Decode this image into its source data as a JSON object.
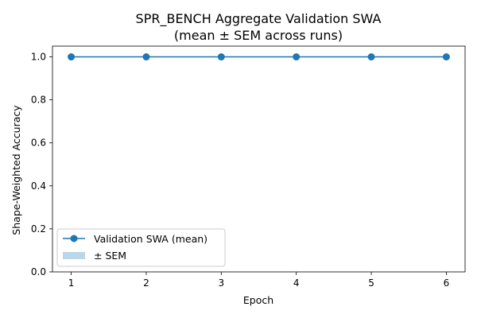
{
  "chart_data": {
    "type": "line",
    "title": "SPR_BENCH Aggregate Validation SWA",
    "subtitle": "(mean ± SEM across runs)",
    "xlabel": "Epoch",
    "ylabel": "Shape-Weighted Accuracy",
    "x": [
      1,
      2,
      3,
      4,
      5,
      6
    ],
    "series": [
      {
        "name": "Validation SWA (mean)",
        "values": [
          1.0,
          1.0,
          1.0,
          1.0,
          1.0,
          1.0
        ],
        "sem": [
          0,
          0,
          0,
          0,
          0,
          0
        ]
      }
    ],
    "xlim": [
      0.75,
      6.25
    ],
    "ylim": [
      0.0,
      1.05
    ],
    "xticks": [
      1,
      2,
      3,
      4,
      5,
      6
    ],
    "yticks": [
      "0.0",
      "0.2",
      "0.4",
      "0.6",
      "0.8",
      "1.0"
    ],
    "legend": {
      "placement": "lower-left",
      "entries": [
        "Validation SWA (mean)",
        "± SEM"
      ]
    },
    "grid": false,
    "colors": {
      "line": "#1f77b4",
      "band": "#1f77b4"
    }
  }
}
